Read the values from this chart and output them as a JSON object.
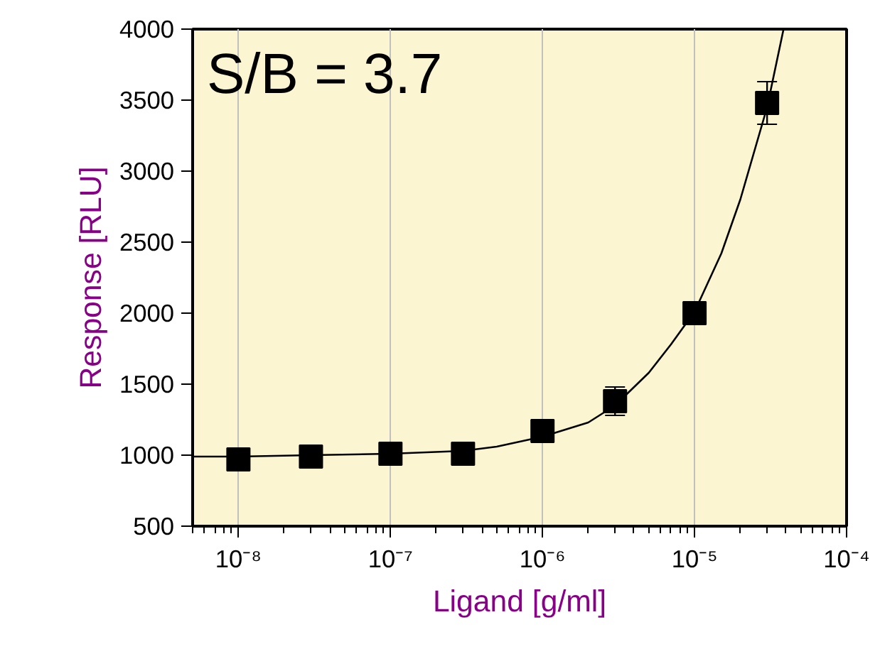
{
  "chart_data": {
    "type": "scatter",
    "xlabel": "Ligand [g/ml]",
    "ylabel": "Response [RLU]",
    "log": "x",
    "grid": "x",
    "xlim": [
      5e-09,
      0.0001
    ],
    "ylim": [
      500,
      4000
    ],
    "xticks": [
      {
        "value": 1e-08,
        "label": "10⁻⁸"
      },
      {
        "value": 1e-07,
        "label": "10⁻⁷"
      },
      {
        "value": 1e-06,
        "label": "10⁻⁶"
      },
      {
        "value": 1e-05,
        "label": "10⁻⁵"
      },
      {
        "value": 0.0001,
        "label": "10⁻⁴"
      }
    ],
    "yticks": [
      500,
      1000,
      1500,
      2000,
      2500,
      3000,
      3500,
      4000
    ],
    "annotations": [
      "S/B = 3.7"
    ],
    "series": [
      {
        "marker": "square",
        "color": "#000000",
        "x": [
          1e-08,
          3e-08,
          1e-07,
          3e-07,
          1e-06,
          3e-06,
          1e-05,
          3e-05
        ],
        "values": [
          970,
          990,
          1010,
          1010,
          1170,
          1380,
          2000,
          3480
        ],
        "errors": [
          null,
          null,
          null,
          null,
          null,
          100,
          null,
          150
        ]
      },
      {
        "type": "line",
        "marker": "none",
        "color": "#000000",
        "x": [
          5e-09,
          1e-08,
          3e-08,
          1e-07,
          3e-07,
          5e-07,
          1e-06,
          2e-06,
          3e-06,
          5e-06,
          7e-06,
          1e-05,
          1.5e-05,
          2e-05,
          3e-05,
          3.85e-05
        ],
        "values": [
          990,
          990,
          1000,
          1010,
          1030,
          1060,
          1130,
          1230,
          1350,
          1580,
          1780,
          2010,
          2420,
          2800,
          3450,
          4000
        ]
      }
    ]
  }
}
